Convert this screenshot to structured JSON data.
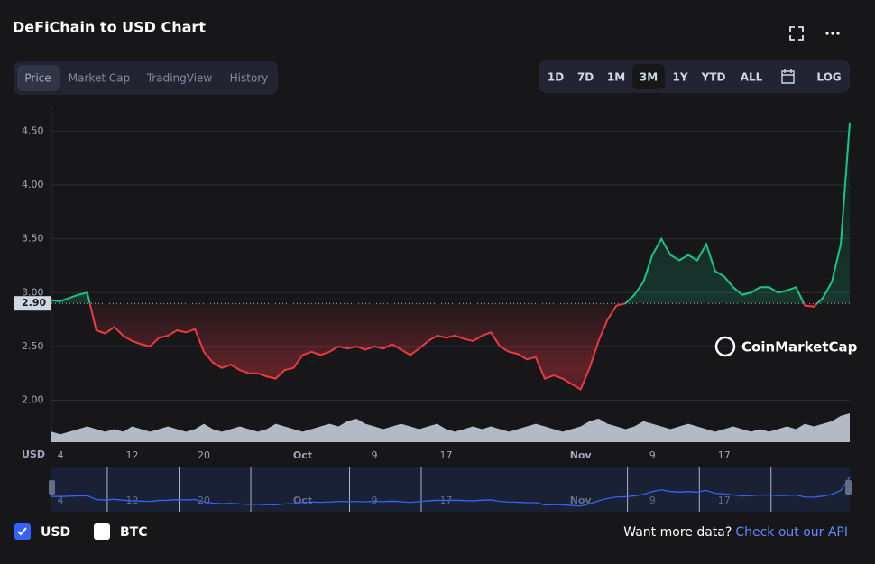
{
  "header": {
    "title": "DeFiChain to USD Chart"
  },
  "tabs": [
    "Price",
    "Market Cap",
    "TradingView",
    "History"
  ],
  "ranges": [
    "1D",
    "7D",
    "1M",
    "3M",
    "1Y",
    "YTD",
    "ALL",
    "LOG"
  ],
  "active_range": "3M",
  "watermark": "CoinMarketCap",
  "currencies": [
    "USD",
    "BTC"
  ],
  "footer": {
    "text": "Want more data?",
    "link": "Check out our API"
  },
  "chart_data": {
    "type": "line",
    "y_label": "USD",
    "categories": [
      null,
      "4",
      null,
      null,
      null,
      null,
      null,
      null,
      null,
      "12",
      null,
      null,
      null,
      null,
      null,
      null,
      null,
      "20",
      null,
      null,
      null,
      null,
      null,
      null,
      null,
      null,
      null,
      null,
      "Oct",
      null,
      null,
      null,
      null,
      null,
      null,
      null,
      "9",
      null,
      null,
      null,
      null,
      null,
      null,
      null,
      "17",
      null,
      null,
      null,
      null,
      null,
      null,
      null,
      null,
      null,
      null,
      null,
      null,
      null,
      null,
      "Nov",
      null,
      null,
      null,
      null,
      null,
      null,
      null,
      "9",
      null,
      null,
      null,
      null,
      null,
      null,
      null,
      "17",
      null,
      null,
      null,
      null,
      null,
      null,
      null,
      null,
      null,
      null,
      null,
      null,
      null,
      null
    ],
    "series": [
      {
        "name": "USD",
        "up_color": "#16c784",
        "down_color": "#ea3943",
        "values": [
          2.93,
          2.92,
          2.95,
          2.98,
          3.0,
          2.65,
          2.62,
          2.68,
          2.6,
          2.55,
          2.52,
          2.5,
          2.58,
          2.6,
          2.65,
          2.63,
          2.66,
          2.45,
          2.35,
          2.3,
          2.33,
          2.28,
          2.25,
          2.25,
          2.22,
          2.2,
          2.28,
          2.3,
          2.42,
          2.45,
          2.42,
          2.45,
          2.5,
          2.48,
          2.5,
          2.47,
          2.5,
          2.48,
          2.52,
          2.47,
          2.42,
          2.48,
          2.55,
          2.6,
          2.58,
          2.6,
          2.57,
          2.55,
          2.6,
          2.63,
          2.5,
          2.45,
          2.43,
          2.38,
          2.4,
          2.2,
          2.23,
          2.2,
          2.15,
          2.1,
          2.3,
          2.55,
          2.75,
          2.88,
          2.9,
          2.98,
          3.1,
          3.35,
          3.5,
          3.35,
          3.3,
          3.35,
          3.3,
          3.45,
          3.2,
          3.15,
          3.05,
          2.98,
          3.0,
          3.05,
          3.05,
          3.0,
          3.02,
          3.05,
          2.88,
          2.87,
          2.95,
          3.1,
          3.45,
          4.58
        ]
      }
    ],
    "volume": {
      "color": "#cfd6e4",
      "values": [
        4,
        3,
        4,
        5,
        6,
        5,
        4,
        5,
        4,
        6,
        5,
        4,
        5,
        6,
        5,
        4,
        5,
        7,
        5,
        4,
        5,
        6,
        5,
        4,
        5,
        7,
        6,
        5,
        4,
        5,
        6,
        7,
        6,
        8,
        9,
        7,
        6,
        5,
        6,
        7,
        6,
        5,
        6,
        7,
        5,
        4,
        5,
        6,
        5,
        6,
        5,
        4,
        5,
        6,
        7,
        6,
        5,
        4,
        5,
        6,
        8,
        9,
        7,
        6,
        5,
        6,
        8,
        7,
        6,
        5,
        6,
        7,
        6,
        5,
        4,
        5,
        6,
        5,
        4,
        5,
        4,
        5,
        6,
        5,
        7,
        6,
        7,
        8,
        10,
        11
      ]
    },
    "navigator_color": "#3861fb",
    "ylim": [
      1.61,
      4.73
    ],
    "yticks": [
      {
        "value": 2,
        "label": "2.00"
      },
      {
        "value": 2.5,
        "label": "2.50"
      },
      {
        "value": 3,
        "label": "3.00"
      },
      {
        "value": 3.5,
        "label": "3.50"
      },
      {
        "value": 4,
        "label": "4.00"
      },
      {
        "value": 4.5,
        "label": "4.50"
      }
    ],
    "baseline": {
      "value": 2.9,
      "label": "2.90"
    },
    "grid": true
  }
}
